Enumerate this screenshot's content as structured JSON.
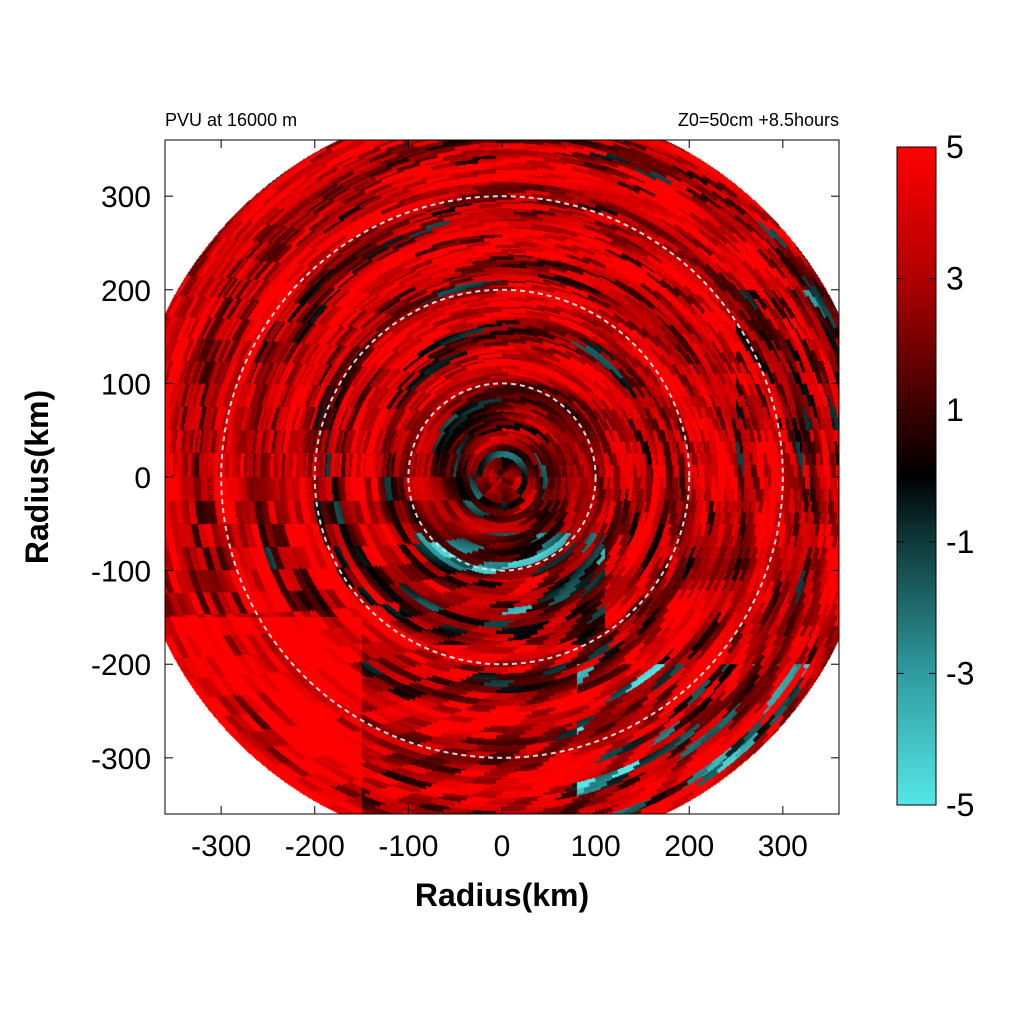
{
  "chart_data": {
    "type": "heatmap",
    "title_left": "PVU at 16000 m",
    "title_right": "Z0=50cm  +8.5hours",
    "xlabel": "Radius(km)",
    "ylabel": "Radius(km)",
    "xlim": [
      -360,
      360
    ],
    "ylim": [
      -360,
      360
    ],
    "x_ticks": [
      -300,
      -200,
      -100,
      0,
      100,
      200,
      300
    ],
    "y_ticks": [
      300,
      200,
      100,
      0,
      -100,
      -200,
      -300
    ],
    "domain_radius_km": 400,
    "reference_circles_km": [
      100,
      200,
      300
    ],
    "colorbar": {
      "min": -5,
      "max": 5,
      "tick_values": [
        5,
        3,
        1,
        -1,
        -3,
        -5
      ],
      "tick_labels": [
        "5",
        "3",
        "1",
        "-1",
        "-3",
        "-5"
      ],
      "color_stops": [
        {
          "value": -5,
          "color": "#55e6e8"
        },
        {
          "value": -3,
          "color": "#2f9c9f"
        },
        {
          "value": -1,
          "color": "#0f3a3b"
        },
        {
          "value": 0,
          "color": "#000000"
        },
        {
          "value": 1,
          "color": "#3a0000"
        },
        {
          "value": 3,
          "color": "#b00000"
        },
        {
          "value": 5,
          "color": "#ff0000"
        }
      ]
    },
    "grid": false
  }
}
